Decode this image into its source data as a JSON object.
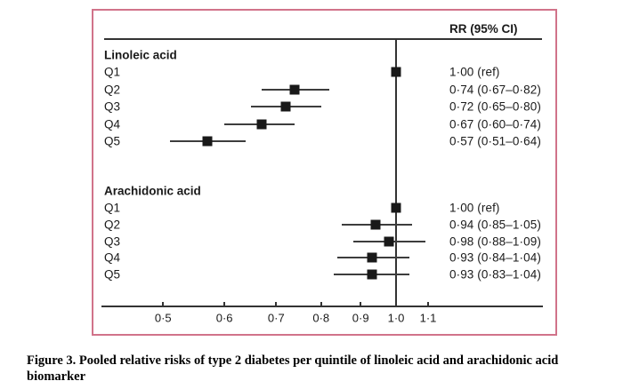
{
  "figure": {
    "rr_header": "RR (95% CI)",
    "caption_lines": [
      "Figure 3. Pooled relative risks of type 2 diabetes per quintile of linoleic acid and arachidonic acid",
      "biomarker"
    ]
  },
  "colors": {
    "frame_border": "#d1738a",
    "marker": "#191919",
    "line": "#333333",
    "text": "#1a1a1a"
  },
  "chart_data": {
    "type": "forest",
    "x_scale": "log",
    "reference_value": 1.0,
    "xlim": [
      0.45,
      1.15
    ],
    "x_ticks": [
      {
        "label": "0·5",
        "value": 0.5
      },
      {
        "label": "0·6",
        "value": 0.6
      },
      {
        "label": "0·7",
        "value": 0.7
      },
      {
        "label": "0·8",
        "value": 0.8
      },
      {
        "label": "0·9",
        "value": 0.9
      },
      {
        "label": "1·0",
        "value": 1.0
      },
      {
        "label": "1·1",
        "value": 1.1
      }
    ],
    "column_header": "RR (95% CI)",
    "groups": [
      {
        "name": "Linoleic acid",
        "rows": [
          {
            "label": "Q1",
            "rr": 1.0,
            "ci": null,
            "text": "1·00 (ref)"
          },
          {
            "label": "Q2",
            "rr": 0.74,
            "ci": [
              0.67,
              0.82
            ],
            "text": "0·74 (0·67–0·82)"
          },
          {
            "label": "Q3",
            "rr": 0.72,
            "ci": [
              0.65,
              0.8
            ],
            "text": "0·72 (0·65–0·80)"
          },
          {
            "label": "Q4",
            "rr": 0.67,
            "ci": [
              0.6,
              0.74
            ],
            "text": "0·67 (0·60–0·74)"
          },
          {
            "label": "Q5",
            "rr": 0.57,
            "ci": [
              0.51,
              0.64
            ],
            "text": "0·57 (0·51–0·64)"
          }
        ]
      },
      {
        "name": "Arachidonic acid",
        "rows": [
          {
            "label": "Q1",
            "rr": 1.0,
            "ci": null,
            "text": "1·00 (ref)"
          },
          {
            "label": "Q2",
            "rr": 0.94,
            "ci": [
              0.85,
              1.05
            ],
            "text": "0·94 (0·85–1·05)"
          },
          {
            "label": "Q3",
            "rr": 0.98,
            "ci": [
              0.88,
              1.09
            ],
            "text": "0·98 (0·88–1·09)"
          },
          {
            "label": "Q4",
            "rr": 0.93,
            "ci": [
              0.84,
              1.04
            ],
            "text": "0·93 (0·84–1·04)"
          },
          {
            "label": "Q5",
            "rr": 0.93,
            "ci": [
              0.83,
              1.04
            ],
            "text": "0·93 (0·83–1·04)"
          }
        ]
      }
    ]
  }
}
